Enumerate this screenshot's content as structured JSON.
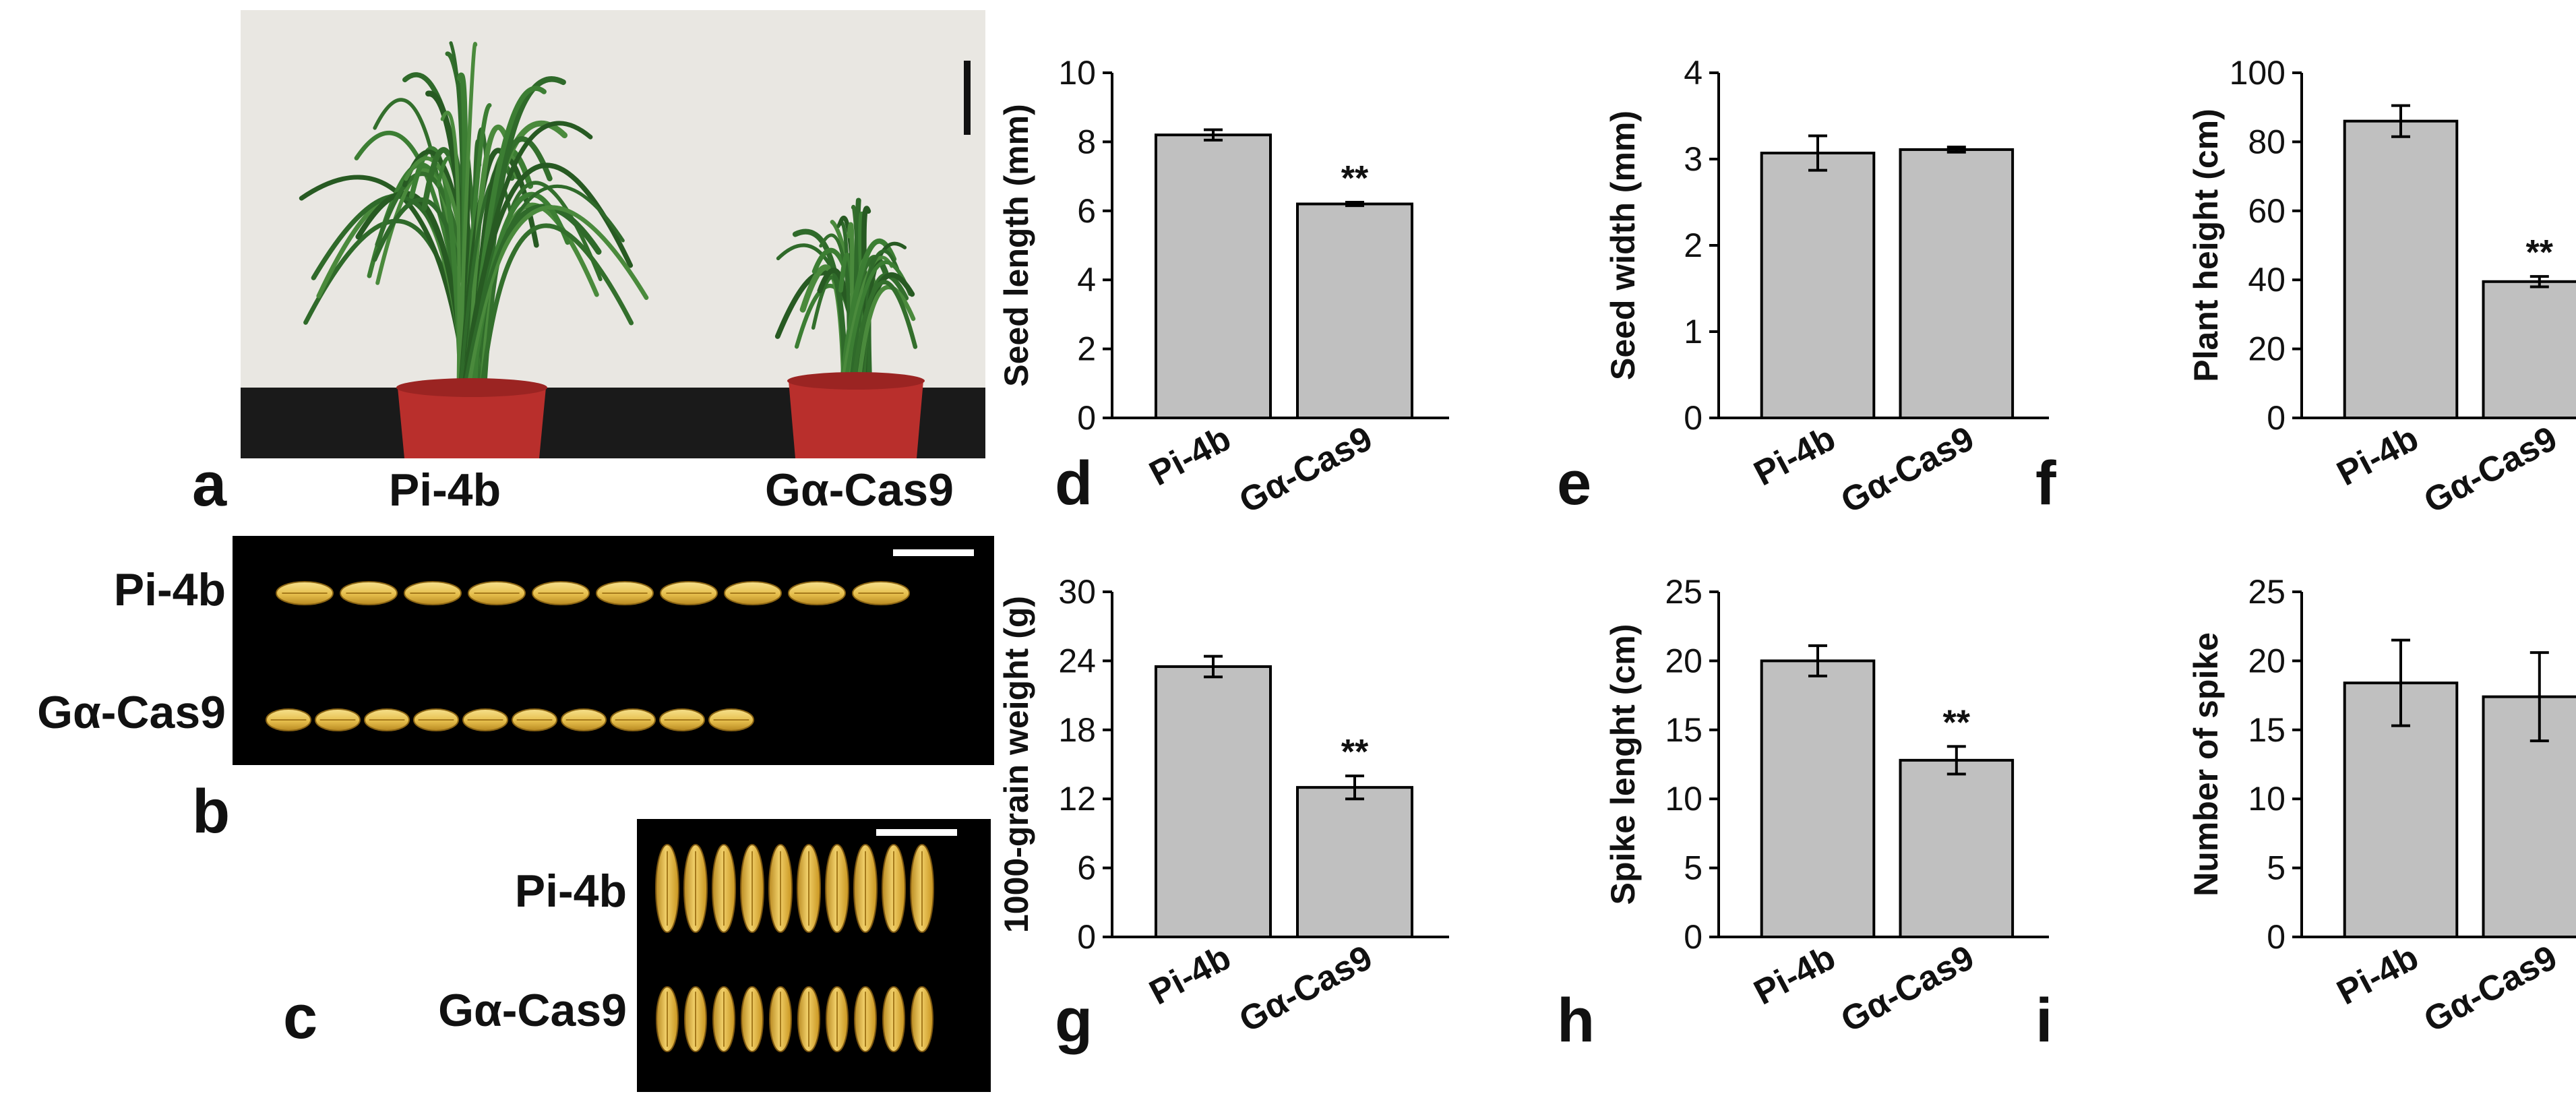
{
  "colors": {
    "bar_fill": "#c0c0c0",
    "bar_stroke": "#000000",
    "photo_wall": "#e9e7e2",
    "photo_floor": "#1a1a1a",
    "pot_red": "#b92f2c",
    "leaf_green": "#2f6a2a",
    "seed_yellow": "#e9c75a",
    "seed_dark": "#c9951f",
    "panel_black": "#000000",
    "scale_bar": "#ffffff"
  },
  "photos": {
    "a": {
      "panel_label": "a",
      "labels": [
        "Pi-4b",
        "Gα-Cas9"
      ]
    },
    "b": {
      "panel_label": "b",
      "labels": [
        "Pi-4b",
        "Gα-Cas9"
      ],
      "seed_counts": [
        10,
        10
      ]
    },
    "c": {
      "panel_label": "c",
      "labels": [
        "Pi-4b",
        "Gα-Cas9"
      ],
      "seed_counts": [
        10,
        10
      ]
    }
  },
  "chart_data": [
    {
      "panel_label": "d",
      "type": "bar",
      "categories": [
        "Pi-4b",
        "Gα-Cas9"
      ],
      "values": [
        8.2,
        6.2
      ],
      "errors": [
        0.15,
        0.05
      ],
      "significance": [
        "",
        "**"
      ],
      "ylabel": "Seed length (mm)",
      "ylim": [
        0,
        10
      ],
      "yticks": [
        0,
        2,
        4,
        6,
        8,
        10
      ]
    },
    {
      "panel_label": "e",
      "type": "bar",
      "categories": [
        "Pi-4b",
        "Gα-Cas9"
      ],
      "values": [
        3.07,
        3.11
      ],
      "errors": [
        0.2,
        0.03
      ],
      "significance": [
        "",
        ""
      ],
      "ylabel": "Seed width (mm)",
      "ylim": [
        0,
        4
      ],
      "yticks": [
        0,
        1,
        2,
        3,
        4
      ]
    },
    {
      "panel_label": "f",
      "type": "bar",
      "categories": [
        "Pi-4b",
        "Gα-Cas9"
      ],
      "values": [
        86,
        39.5
      ],
      "errors": [
        4.5,
        1.5
      ],
      "significance": [
        "",
        "**"
      ],
      "ylabel": "Plant height (cm)",
      "ylim": [
        0,
        100
      ],
      "yticks": [
        0,
        20,
        40,
        60,
        80,
        100
      ]
    },
    {
      "panel_label": "g",
      "type": "bar",
      "categories": [
        "Pi-4b",
        "Gα-Cas9"
      ],
      "values": [
        23.5,
        13.0
      ],
      "errors": [
        0.9,
        1.0
      ],
      "significance": [
        "",
        "**"
      ],
      "ylabel": "1000-grain weight (g)",
      "ylim": [
        0,
        30
      ],
      "yticks": [
        0,
        6,
        12,
        18,
        24,
        30
      ]
    },
    {
      "panel_label": "h",
      "type": "bar",
      "categories": [
        "Pi-4b",
        "Gα-Cas9"
      ],
      "values": [
        20.0,
        12.8
      ],
      "errors": [
        1.1,
        1.0
      ],
      "significance": [
        "",
        "**"
      ],
      "ylabel": "Spike lenght (cm)",
      "ylim": [
        0,
        25
      ],
      "yticks": [
        0,
        5,
        10,
        15,
        20,
        25
      ]
    },
    {
      "panel_label": "i",
      "type": "bar",
      "categories": [
        "Pi-4b",
        "Gα-Cas9"
      ],
      "values": [
        18.4,
        17.4
      ],
      "errors": [
        3.1,
        3.2
      ],
      "significance": [
        "",
        ""
      ],
      "ylabel": "Number of spike",
      "ylim": [
        0,
        25
      ],
      "yticks": [
        0,
        5,
        10,
        15,
        20,
        25
      ]
    }
  ]
}
